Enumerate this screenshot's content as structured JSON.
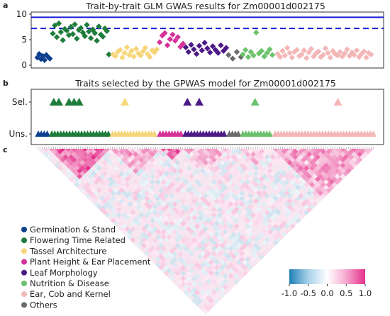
{
  "panels": {
    "a": {
      "letter": "a",
      "title": "Trait-by-trait GLM GWAS results for Zm00001d002175"
    },
    "b": {
      "letter": "b",
      "title": "Traits selected by the GPWAS model for Zm00001d002175"
    },
    "c": {
      "letter": "c"
    }
  },
  "legend_items": [
    {
      "label": "Germination & Stand",
      "color": "#0d3f8f"
    },
    {
      "label": "Flowering Time Related",
      "color": "#1e7d3a"
    },
    {
      "label": "Tassel Architecture",
      "color": "#f6d67a"
    },
    {
      "label": "Plant Height & Ear Placement",
      "color": "#d6339a"
    },
    {
      "label": "Leaf Morphology",
      "color": "#4b1a86"
    },
    {
      "label": "Nutrition & Disease",
      "color": "#6cc26c"
    },
    {
      "label": "Ear, Cob and Kernel",
      "color": "#f4b7b7"
    },
    {
      "label": "Others",
      "color": "#6b6b6b"
    }
  ],
  "colorbar": {
    "ticks": [
      "-1.0",
      "-0.5",
      "0.0",
      "0.5",
      "1.0"
    ],
    "low_color": "#1f7fb7",
    "mid_color": "#ffffff",
    "high_color": "#e52f8a"
  },
  "chart_data": [
    {
      "type": "scatter",
      "title": "Trait-by-trait GLM GWAS results for Zm00001d002175",
      "yticks": [
        "0",
        "5",
        "10"
      ],
      "ylim": [
        0,
        10
      ],
      "thresholds": [
        {
          "value": 9.4,
          "style": "solid",
          "color": "#1a1ad6"
        },
        {
          "value": 7.2,
          "style": "dashed",
          "color": "#1a1ad6"
        }
      ],
      "series": [
        {
          "category": "Germination & Stand",
          "y": [
            1.5,
            2.2,
            1.2,
            1.8,
            1.0,
            2.0,
            1.6,
            1.3
          ]
        },
        {
          "category": "Flowering Time Related",
          "y": [
            6.2,
            7.8,
            5.5,
            8.2,
            6.5,
            4.9,
            7.1,
            6.8,
            5.9,
            7.5,
            6.1,
            8.0,
            5.2,
            6.9,
            7.3,
            6.4,
            5.7,
            7.9,
            6.6,
            5.3,
            7.0,
            6.3,
            4.8,
            7.6,
            6.0,
            5.6,
            7.2,
            6.7,
            2.1
          ]
        },
        {
          "category": "Tassel Architecture",
          "y": [
            2.1,
            1.8,
            2.6,
            3.0,
            1.5,
            2.4,
            3.5,
            2.0,
            2.8,
            1.7,
            3.2,
            2.3,
            1.9,
            2.7,
            3.4,
            2.2,
            1.6,
            2.9,
            2.5,
            3.1
          ]
        },
        {
          "category": "Plant Height & Ear Placement",
          "y": [
            4.5,
            5.8,
            6.3,
            3.9,
            5.1,
            6.0,
            4.8,
            5.5,
            3.6,
            4.2
          ]
        },
        {
          "category": "Leaf Morphology",
          "y": [
            3.5,
            2.6,
            4.0,
            3.1,
            2.2,
            3.8,
            2.9,
            4.4,
            3.3,
            2.5,
            3.7,
            3.0,
            2.4,
            3.9,
            2.8,
            3.4
          ]
        },
        {
          "category": "Others",
          "y": [
            2.0,
            1.3,
            2.6,
            1.6
          ]
        },
        {
          "category": "Nutrition & Disease",
          "y": [
            2.1,
            3.0,
            1.6,
            2.6,
            1.9,
            6.4,
            2.3,
            2.8,
            1.7,
            2.4,
            3.1,
            2.0
          ]
        },
        {
          "category": "Ear, Cob and Kernel",
          "y": [
            2.2,
            1.6,
            2.8,
            1.9,
            3.4,
            2.4,
            1.5,
            2.6,
            3.0,
            1.8,
            2.1,
            2.9,
            1.4,
            2.5,
            3.2,
            1.7,
            2.3,
            2.7,
            1.6,
            2.0,
            3.3,
            2.4,
            1.5,
            2.8,
            2.2,
            1.9,
            2.6,
            1.7,
            2.3,
            3.1,
            1.8,
            2.5,
            2.0,
            2.9,
            1.6,
            2.2,
            2.7,
            1.5,
            2.4,
            2.1
          ]
        }
      ]
    },
    {
      "type": "scatter",
      "title": "Traits selected by the GPWAS model for Zm00001d002175",
      "yticks": [
        "Sel.",
        "Uns."
      ],
      "selected": [
        {
          "category": "Flowering Time Related",
          "positions": [
            0.05,
            0.065,
            0.095,
            0.11,
            0.125
          ]
        },
        {
          "category": "Tassel Architecture",
          "positions": [
            0.26
          ]
        },
        {
          "category": "Leaf Morphology",
          "positions": [
            0.445,
            0.48
          ]
        },
        {
          "category": "Nutrition & Disease",
          "positions": [
            0.645
          ]
        },
        {
          "category": "Ear, Cob and Kernel",
          "positions": [
            0.89
          ]
        }
      ],
      "unselected_segments": [
        {
          "category": "Germination & Stand",
          "from": 0.0,
          "to": 0.04
        },
        {
          "category": "Flowering Time Related",
          "from": 0.04,
          "to": 0.22
        },
        {
          "category": "Tassel Architecture",
          "from": 0.22,
          "to": 0.36
        },
        {
          "category": "Plant Height & Ear Placement",
          "from": 0.36,
          "to": 0.435
        },
        {
          "category": "Leaf Morphology",
          "from": 0.435,
          "to": 0.565
        },
        {
          "category": "Others",
          "from": 0.565,
          "to": 0.605
        },
        {
          "category": "Nutrition & Disease",
          "from": 0.605,
          "to": 0.7
        },
        {
          "category": "Ear, Cob and Kernel",
          "from": 0.7,
          "to": 1.0
        }
      ]
    },
    {
      "type": "heatmap",
      "description_free": true,
      "shape": "lower-triangle correlation matrix",
      "value_range": [
        -1.0,
        1.0
      ],
      "blocks": [
        {
          "from": 0.04,
          "to": 0.22,
          "r": 0.7
        },
        {
          "from": 0.22,
          "to": 0.36,
          "r": 0.35
        },
        {
          "from": 0.36,
          "to": 0.435,
          "r": 0.6
        },
        {
          "from": 0.435,
          "to": 0.565,
          "r": 0.3
        },
        {
          "from": 0.605,
          "to": 0.7,
          "r": 0.25
        },
        {
          "from": 0.7,
          "to": 1.0,
          "r": 0.4
        }
      ]
    }
  ]
}
